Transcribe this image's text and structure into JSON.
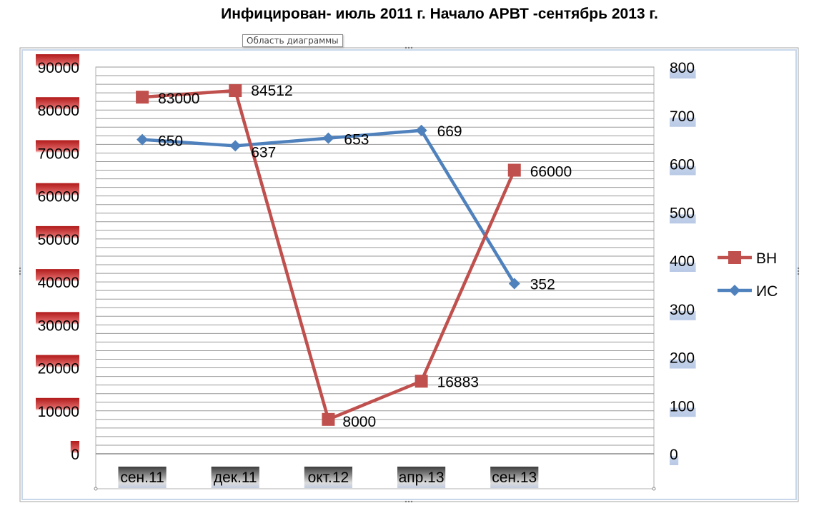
{
  "chart_data": {
    "type": "line",
    "title": "Инфицирован- июль 2011 г.  Начало АРВТ -сентябрь 2013 г.",
    "categories": [
      "сен.11",
      "дек.11",
      "окт.12",
      "апр.13",
      "сен.13"
    ],
    "y_left": {
      "min": 0,
      "max": 90000,
      "step": 10000,
      "ticks": [
        "0",
        "10000",
        "20000",
        "30000",
        "40000",
        "50000",
        "60000",
        "70000",
        "80000",
        "90000"
      ]
    },
    "y_right": {
      "min": 0,
      "max": 800,
      "step": 100,
      "ticks": [
        "0",
        "100",
        "200",
        "300",
        "400",
        "500",
        "600",
        "700",
        "800"
      ]
    },
    "series": [
      {
        "name": "ВН",
        "axis": "left",
        "color": "#C0504D",
        "marker": "square",
        "values": [
          83000,
          84512,
          8000,
          16883,
          66000
        ],
        "labels": [
          "83000",
          "84512",
          "8000",
          "16883",
          "66000"
        ]
      },
      {
        "name": "ИС",
        "axis": "right",
        "color": "#4F81BD",
        "marker": "diamond",
        "values": [
          650,
          637,
          653,
          669,
          352
        ],
        "labels": [
          "650",
          "637",
          "653",
          "669",
          "352"
        ]
      }
    ],
    "legend": "right",
    "grid": true
  },
  "ui": {
    "tooltip": "Область диаграммы"
  }
}
